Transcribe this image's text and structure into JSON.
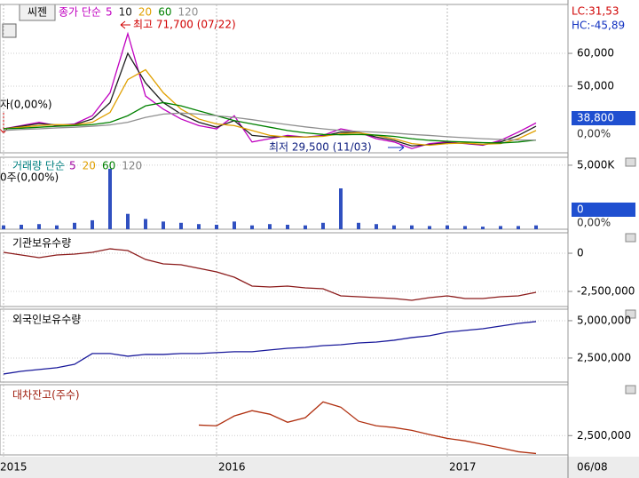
{
  "x_axis": {
    "categories": [
      "2015",
      null,
      null,
      null,
      null,
      null,
      null,
      null,
      null,
      null,
      null,
      null,
      "2016",
      null,
      null,
      null,
      null,
      null,
      null,
      null,
      null,
      null,
      null,
      null,
      null,
      "2017",
      null,
      null,
      null,
      null,
      null
    ],
    "last_date": "06/08"
  },
  "chart_data": [
    {
      "type": "line",
      "stock_name": "씨젠",
      "legend_prefix": "종가 단순",
      "ylim": [
        29700,
        74900
      ],
      "yticks": [
        {
          "value": 50000,
          "label": "50,000"
        },
        {
          "value": 60000,
          "label": "60,000"
        }
      ],
      "annotations": {
        "high": "최고 71,700 (07/22)",
        "low": "최저 29,500 (11/03)",
        "left": "자(0,00%)",
        "lc": "LC:31,53",
        "hc": "HC:-45,89",
        "last_price": "38,800",
        "last_change": "0,00%"
      },
      "series": [
        {
          "name": "5",
          "color": "#c000c0",
          "values": [
            37000,
            38000,
            39000,
            38000,
            38500,
            41000,
            48000,
            66000,
            47000,
            43000,
            40000,
            38000,
            37000,
            41000,
            33000,
            34000,
            35000,
            34500,
            35000,
            37000,
            36000,
            34000,
            33000,
            31000,
            32500,
            33000,
            32500,
            32000,
            33500,
            36000,
            38800
          ]
        },
        {
          "name": "10",
          "color": "#202020",
          "values": [
            37000,
            37800,
            38600,
            38200,
            38300,
            40000,
            45000,
            60000,
            51000,
            45000,
            41500,
            39000,
            37500,
            39500,
            35000,
            34500,
            34700,
            34500,
            34800,
            36000,
            35900,
            34500,
            33500,
            31800,
            32200,
            32700,
            32600,
            32200,
            33000,
            35000,
            37800
          ]
        },
        {
          "name": "20",
          "color": "#e0a000",
          "values": [
            37000,
            37500,
            38000,
            38300,
            38200,
            39000,
            42000,
            52000,
            55000,
            48000,
            43000,
            40000,
            38500,
            38000,
            36500,
            35000,
            34500,
            34500,
            34700,
            35500,
            35800,
            35000,
            34000,
            32500,
            32000,
            32500,
            32700,
            32300,
            32500,
            34000,
            36500
          ]
        },
        {
          "name": "60",
          "color": "#008000",
          "values": [
            37000,
            37200,
            37500,
            37800,
            38000,
            38300,
            39000,
            41000,
            44000,
            45000,
            44000,
            42500,
            41000,
            39500,
            38500,
            37500,
            36500,
            35800,
            35300,
            35200,
            35300,
            35100,
            34700,
            34000,
            33500,
            33200,
            33000,
            32800,
            32700,
            33000,
            33600
          ]
        },
        {
          "name": "120",
          "color": "#909090",
          "values": [
            36500,
            36800,
            37000,
            37300,
            37500,
            37800,
            38200,
            39000,
            40500,
            41500,
            41800,
            41500,
            41000,
            40500,
            39800,
            39000,
            38300,
            37600,
            37000,
            36500,
            36200,
            36000,
            35700,
            35300,
            35000,
            34600,
            34300,
            34000,
            33800,
            33600,
            33600
          ]
        }
      ]
    },
    {
      "type": "bar",
      "legend_prefix": "거래량 단순",
      "color": "#3050c0",
      "ylim": [
        0,
        5620
      ],
      "yticks": [
        {
          "value": 5000,
          "label": "5,000K"
        }
      ],
      "annotations": {
        "left": "0주(0,00%)",
        "last_volume": "0",
        "last_change": "0,00%"
      },
      "legend": [
        {
          "name": "5",
          "color": "#a000a0"
        },
        {
          "name": "20",
          "color": "#e0a000"
        },
        {
          "name": "60",
          "color": "#008000"
        },
        {
          "name": "120",
          "color": "#808080"
        }
      ],
      "values": [
        300,
        350,
        400,
        300,
        500,
        700,
        4720,
        1200,
        800,
        600,
        500,
        400,
        350,
        600,
        300,
        400,
        350,
        300,
        500,
        3190,
        500,
        400,
        300,
        300,
        250,
        300,
        250,
        200,
        250,
        250,
        300
      ]
    },
    {
      "type": "line",
      "title": "기관보유수량",
      "ylim": [
        -3490000,
        1340000
      ],
      "yticks": [
        0,
        {
          "value": -2500000,
          "label": "-2,500,000"
        }
      ],
      "series": [
        {
          "color": "#8b1a1a",
          "values": [
            60000,
            -116000,
            -290000,
            -116000,
            -58000,
            58000,
            290000,
            174000,
            -407000,
            -698000,
            -756000,
            -988000,
            -1221000,
            -1570000,
            -2151000,
            -2209000,
            -2151000,
            -2267000,
            -2326000,
            -2791000,
            -2849000,
            -2907000,
            -2965000,
            -3081000,
            -2907000,
            -2791000,
            -2965000,
            -2965000,
            -2849000,
            -2791000,
            -2558000
          ]
        }
      ]
    },
    {
      "type": "line",
      "title": "외국인보유수량",
      "ylim": [
        890000,
        5770000
      ],
      "yticks": [
        {
          "value": 2500000,
          "label": "2,500,000"
        },
        {
          "value": 5000000,
          "label": "5,000,000"
        }
      ],
      "series": [
        {
          "color": "#1a1a9b",
          "values": [
            1430000,
            1610000,
            1730000,
            1850000,
            2080000,
            2800000,
            2800000,
            2620000,
            2740000,
            2740000,
            2800000,
            2800000,
            2860000,
            2920000,
            2920000,
            3040000,
            3150000,
            3210000,
            3330000,
            3390000,
            3510000,
            3570000,
            3690000,
            3870000,
            3990000,
            4230000,
            4350000,
            4460000,
            4640000,
            4820000,
            4940000
          ]
        }
      ]
    },
    {
      "type": "line",
      "title": "대차잔고(주수)",
      "ylim": [
        1950000,
        3950000
      ],
      "yticks": [
        {
          "value": 2500000,
          "label": "2,500,000"
        }
      ],
      "series": [
        {
          "color": "#b03010",
          "values": [
            null,
            null,
            null,
            null,
            null,
            null,
            null,
            null,
            null,
            null,
            null,
            2800000,
            2780000,
            3060000,
            3210000,
            3110000,
            2880000,
            3010000,
            3460000,
            3310000,
            2910000,
            2780000,
            2730000,
            2650000,
            2530000,
            2420000,
            2350000,
            2250000,
            2150000,
            2040000,
            1990000
          ]
        }
      ]
    }
  ]
}
